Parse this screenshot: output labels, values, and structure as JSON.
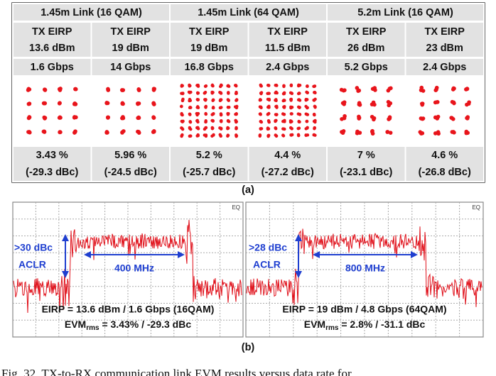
{
  "table": {
    "header": [
      "1.45m Link (16 QAM)",
      "1.45m Link (64 QAM)",
      "5.2m Link (16 QAM)"
    ],
    "columns": [
      {
        "eirp_label": "TX EIRP",
        "eirp": "13.6 dBm",
        "rate": "1.6 Gbps",
        "evm": "3.43 %",
        "dbc": "(-29.3 dBc)"
      },
      {
        "eirp_label": "TX EIRP",
        "eirp": "19 dBm",
        "rate": "14 Gbps",
        "evm": "5.96 %",
        "dbc": "(-24.5 dBc)"
      },
      {
        "eirp_label": "TX EIRP",
        "eirp": "19 dBm",
        "rate": "16.8 Gbps",
        "evm": "5.2 %",
        "dbc": "(-25.7 dBc)"
      },
      {
        "eirp_label": "TX EIRP",
        "eirp": "11.5 dBm",
        "rate": "2.4 Gbps",
        "evm": "4.4 %",
        "dbc": "(-27.2 dBc)"
      },
      {
        "eirp_label": "TX EIRP",
        "eirp": "26 dBm",
        "rate": "5.2 Gbps",
        "evm": "7 %",
        "dbc": "(-23.1 dBc)"
      },
      {
        "eirp_label": "TX EIRP",
        "eirp": "23 dBm",
        "rate": "2.4 Gbps",
        "evm": "4.6 %",
        "dbc": "(-26.8 dBc)"
      }
    ]
  },
  "label_a": "(a)",
  "plots": [
    {
      "marker": "EQ",
      "aclr_value": ">30 dBc",
      "aclr_label": "ACLR",
      "bandwidth": "400 MHz",
      "line1": "EIRP = 13.6 dBm / 1.6 Gbps (16QAM)",
      "evm": "EVM",
      "evm_sub": "rms",
      "evm_rest": " = 3.43% / -29.3 dBc"
    },
    {
      "marker": "EQ",
      "aclr_value": ">28 dBc",
      "aclr_label": "ACLR",
      "bandwidth": "800 MHz",
      "line1": "EIRP = 19 dBm / 4.8 Gbps (64QAM)",
      "evm": "EVM",
      "evm_sub": "rms",
      "evm_rest": " = 2.8% / -31.1 dBc"
    }
  ],
  "label_b": "(b)",
  "caption": "Fig. 32.   TX-to-RX communication link EVM results versus data rate for"
}
